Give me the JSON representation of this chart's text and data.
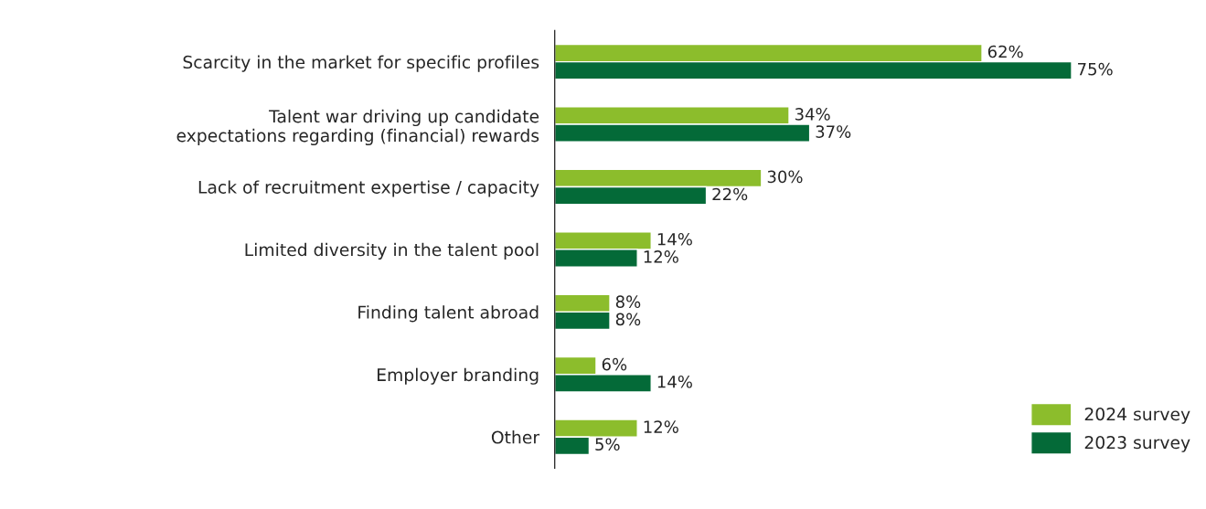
{
  "chart_data": {
    "type": "bar",
    "orientation": "horizontal",
    "categories": [
      "Scarcity in the market for specific profiles",
      "Talent war driving up candidate\nexpectations regarding (financial) rewards",
      "Lack of recruitment expertise / capacity",
      "Limited diversity in the talent pool",
      "Finding talent abroad",
      "Employer branding",
      "Other"
    ],
    "series": [
      {
        "name": "2024 survey",
        "color": "#8cbd2c",
        "values": [
          62,
          34,
          30,
          14,
          8,
          6,
          12
        ],
        "value_labels": [
          "62%",
          "34%",
          "30%",
          "14%",
          "8%",
          "6%",
          "12%"
        ]
      },
      {
        "name": "2023 survey",
        "color": "#046a38",
        "values": [
          75,
          37,
          22,
          12,
          8,
          14,
          5
        ],
        "value_labels": [
          "75%",
          "37%",
          "22%",
          "12%",
          "8%",
          "14%",
          "5%"
        ]
      }
    ],
    "legend": "bottom right",
    "grid": false
  }
}
